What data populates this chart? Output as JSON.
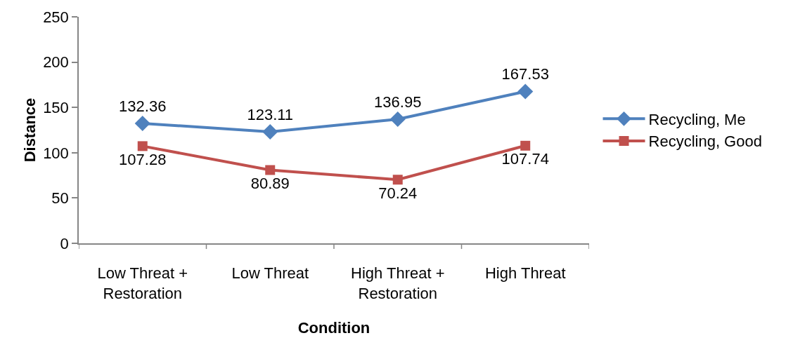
{
  "chart_data": {
    "type": "line",
    "xlabel": "Condition",
    "ylabel": "Distance",
    "categories": [
      "Low Threat + Restoration",
      "Low Threat",
      "High Threat + Restoration",
      "High Threat"
    ],
    "series": [
      {
        "name": "Recycling, Me",
        "color": "#4f81bd",
        "marker": "diamond",
        "values": [
          132.36,
          123.11,
          136.95,
          167.53
        ]
      },
      {
        "name": "Recycling, Good",
        "color": "#c0504d",
        "marker": "square",
        "values": [
          107.28,
          80.89,
          70.24,
          107.74
        ]
      }
    ],
    "ylim": [
      0,
      250
    ],
    "yticks": [
      0,
      50,
      100,
      150,
      200,
      250
    ],
    "data_labels": true,
    "grid": false,
    "legend": "right",
    "line_style": "solid"
  }
}
